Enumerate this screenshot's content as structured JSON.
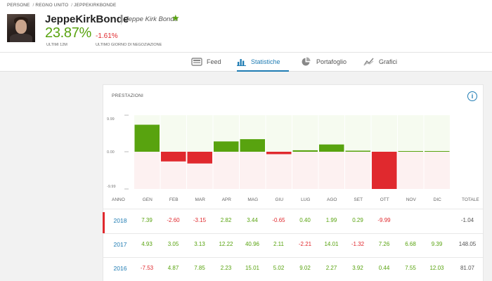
{
  "breadcrumb": [
    "PERSONE",
    "REGNO UNITO",
    "JEPPEKIRKBONDE"
  ],
  "user": {
    "username": "JeppeKirkBonde",
    "full_name": "Jeppe Kirk Bonde",
    "gain": "23.87%",
    "gain_label": "ULTIMI 12M",
    "day_change": "-1.61%",
    "day_change_label": "ULTIMO GIORNO DI NEGOZIAZIONE"
  },
  "tabs": [
    {
      "label": "Feed",
      "icon": "feed-icon",
      "active": false
    },
    {
      "label": "Statistiche",
      "icon": "bar-chart-icon",
      "active": true
    },
    {
      "label": "Portafoglio",
      "icon": "pie-chart-icon",
      "active": false
    },
    {
      "label": "Grafici",
      "icon": "line-chart-icon",
      "active": false
    }
  ],
  "card": {
    "title": "PRESTAZIONI"
  },
  "colors": {
    "positive": "#58a30f",
    "negative": "#e0292e",
    "accent": "#1f7cb3"
  },
  "chart_data": {
    "type": "bar",
    "title": "PRESTAZIONI",
    "categories": [
      "GEN",
      "FEB",
      "MAR",
      "APR",
      "MAG",
      "GIU",
      "LUG",
      "AGO",
      "SET",
      "OTT",
      "NOV",
      "DIC"
    ],
    "values": [
      7.39,
      -2.6,
      -3.15,
      2.82,
      3.44,
      -0.65,
      0.4,
      1.99,
      0.29,
      -9.99,
      0,
      0
    ],
    "y_tick_labels": [
      "9.99",
      "0.00",
      "-9.99"
    ],
    "ylim": [
      -9.99,
      9.99
    ],
    "series_name": "2018"
  },
  "table": {
    "headers": [
      "ANNO",
      "GEN",
      "FEB",
      "MAR",
      "APR",
      "MAG",
      "GIU",
      "LUG",
      "AGO",
      "SET",
      "OTT",
      "NOV",
      "DIC",
      "TOTALE"
    ],
    "rows": [
      {
        "year": "2018",
        "values": [
          "7.39",
          "-2.60",
          "-3.15",
          "2.82",
          "3.44",
          "-0.65",
          "0.40",
          "1.99",
          "0.29",
          "-9.99",
          "",
          ""
        ],
        "total": "-1.04",
        "selected": true
      },
      {
        "year": "2017",
        "values": [
          "4.93",
          "3.05",
          "3.13",
          "12.22",
          "40.96",
          "2.11",
          "-2.21",
          "14.01",
          "-1.32",
          "7.26",
          "6.68",
          "9.39"
        ],
        "total": "148.05",
        "selected": false
      },
      {
        "year": "2016",
        "values": [
          "-7.53",
          "4.87",
          "7.85",
          "2.23",
          "15.01",
          "5.02",
          "9.02",
          "2.27",
          "3.92",
          "0.44",
          "7.55",
          "12.03"
        ],
        "total": "81.07",
        "selected": false
      }
    ]
  }
}
